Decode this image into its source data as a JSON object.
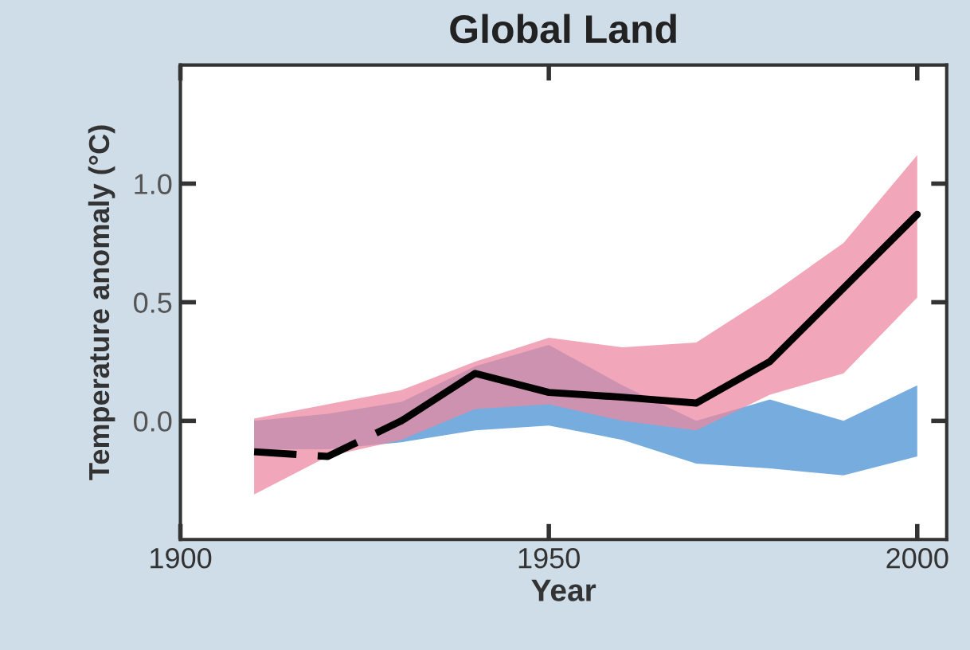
{
  "chart_data": {
    "type": "line",
    "title": "Global Land",
    "xlabel": "Year",
    "ylabel": "Temperature anomaly (°C)",
    "xlim": [
      1900,
      2004
    ],
    "xticks": [
      1900,
      1950,
      2000
    ],
    "ylim": [
      -0.5,
      1.5
    ],
    "yticks": [
      {
        "value": 0,
        "label": "0.0"
      },
      0.5,
      {
        "value": 1,
        "label": "1.0"
      }
    ],
    "series": [
      {
        "color": "#6fa8dc",
        "x": [
          1910,
          1920,
          1930,
          1940,
          1950,
          1960,
          1970,
          1980,
          1990,
          2000
        ],
        "values": [
          null,
          null,
          null,
          null,
          null,
          null,
          null,
          null,
          null,
          null
        ],
        "lower": [
          -0.12,
          -0.12,
          -0.09,
          -0.04,
          -0.02,
          -0.08,
          -0.18,
          -0.2,
          -0.23,
          -0.15
        ],
        "upper": [
          0.0,
          0.03,
          0.08,
          0.23,
          0.32,
          0.15,
          0.0,
          0.09,
          0.0,
          0.15
        ]
      },
      {
        "color": "#ec8aa2",
        "x": [
          1910,
          1920,
          1930,
          1940,
          1950,
          1960,
          1970,
          1980,
          1990,
          2000
        ],
        "values": [
          null,
          null,
          null,
          null,
          null,
          null,
          null,
          null,
          null,
          null
        ],
        "lower": [
          -0.31,
          -0.15,
          -0.08,
          0.05,
          0.07,
          0.0,
          -0.04,
          0.11,
          0.2,
          0.52
        ],
        "upper": [
          0.01,
          0.07,
          0.13,
          0.25,
          0.35,
          0.31,
          0.33,
          0.53,
          0.75,
          1.12
        ]
      },
      {
        "color": "#000000",
        "line_style": "dashed",
        "x": [
          1910,
          1920,
          1930
        ],
        "values": [
          -0.13,
          -0.15,
          0.0
        ]
      },
      {
        "color": "#000000",
        "line_style": "solid",
        "x": [
          1930,
          1940,
          1950,
          1960,
          1970,
          1980,
          1990,
          2000
        ],
        "values": [
          0.0,
          0.2,
          0.12,
          0.1,
          0.075,
          0.25,
          0.56,
          0.87
        ]
      }
    ]
  }
}
